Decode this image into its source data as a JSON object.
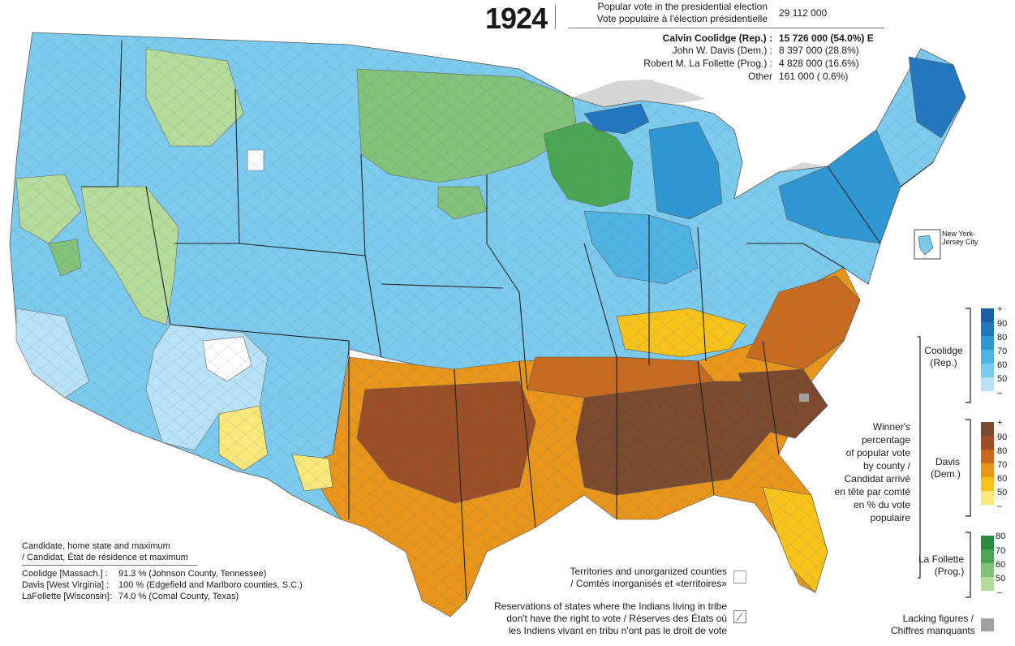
{
  "title": {
    "year": "1924",
    "popular_vote_label_en": "Popular vote in the presidential election",
    "popular_vote_label_fr": "Vote populaire à l'élection présidentielle",
    "popular_vote_total": "29 112 000"
  },
  "candidates": [
    {
      "label": "Calvin Coolidge (Rep.) :",
      "value": "15 726 000  (54.0%) E",
      "bold": true
    },
    {
      "label": "John W. Davis (Dem.) :",
      "value": "8 397 000  (28.8%)"
    },
    {
      "label": "Robert M. La Follette (Prog.) :",
      "value": "4 828 000  (16.6%)"
    },
    {
      "label": "Other",
      "value": "161 000  (  0.6%)"
    }
  ],
  "inset": {
    "label_line1": "New York-",
    "label_line2": "Jersey City"
  },
  "legend": {
    "description": [
      "Winner's",
      "percentage",
      "of popular vote",
      "by county /",
      "Candidat arrivé",
      "en tête par comté",
      "en % du vote",
      "populaire"
    ],
    "groups": [
      {
        "name_line1": "Coolidge",
        "name_line2": "(Rep.)",
        "ticks": [
          "+",
          "90",
          "80",
          "70",
          "60",
          "50",
          "–"
        ],
        "colors": [
          "#1a5fa8",
          "#2277c0",
          "#2f97d3",
          "#4fb3e4",
          "#7ccbef",
          "#b9e1f7"
        ]
      },
      {
        "name_line1": "Davis",
        "name_line2": "(Dem.)",
        "ticks": [
          "+",
          "90",
          "80",
          "70",
          "60",
          "50",
          "–"
        ],
        "colors": [
          "#7b4a2e",
          "#9c4f26",
          "#c86b1e",
          "#e8951a",
          "#f7c21a",
          "#fbe87a"
        ]
      },
      {
        "name_line1": "La Follette",
        "name_line2": "(Prog.)",
        "ticks": [
          "80",
          "70",
          "60",
          "50",
          "–"
        ],
        "colors": [
          "#2a8c3f",
          "#4ba653",
          "#82c27a",
          "#b6dc9c"
        ]
      }
    ],
    "territories_en": "Territories and unorganized counties",
    "territories_fr": "/ Comtés inorganisés et «territoires»",
    "reservations_line1": "Reservations of states where the Indians living in tribe",
    "reservations_line2": "don't have the right to vote / Réserves des États où",
    "reservations_line3": "les Indiens vivant en tribu n'ont pas le droit de vote",
    "lacking_line1": "Lacking figures /",
    "lacking_line2": "Chiffres manquants",
    "lacking_color": "#a0a0a0"
  },
  "maxima": {
    "heading_line1": "Candidate, home state and maximum",
    "heading_line2": "/ Candidat, État de résidence et maximum",
    "rows": [
      {
        "name": "Coolidge [Massach.]  :",
        "value": "91.3 % (Johnson County, Tennessee)"
      },
      {
        "name": "Davis [West Virginia] :",
        "value": "100 % (Edgefield and Marlboro counties, S.C.)"
      },
      {
        "name": "LaFollette [Wisconsin]:",
        "value": "74.0 % (Comal County, Texas)"
      }
    ]
  },
  "colors": {
    "water": "#d8d8d8",
    "background": "#ffffff"
  }
}
